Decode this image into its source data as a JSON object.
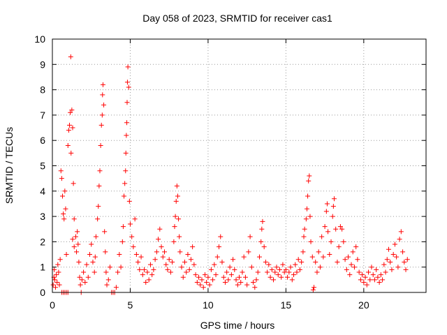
{
  "chart_data": {
    "type": "scatter",
    "title": "Day 058 of 2023, SRMTID for receiver cas1",
    "xlabel": "GPS time / hours",
    "ylabel": "SRMTID / TECUs",
    "xlim": [
      0,
      24
    ],
    "ylim": [
      0,
      10
    ],
    "xticks": [
      0,
      5,
      10,
      15,
      20
    ],
    "xtick_labels": [
      "0",
      "5",
      "10",
      "15",
      "20"
    ],
    "yticks": [
      0,
      1,
      2,
      3,
      4,
      5,
      6,
      7,
      8,
      9,
      10
    ],
    "ytick_labels": [
      "0",
      "1",
      "2",
      "3",
      "4",
      "5",
      "6",
      "7",
      "8",
      "9",
      "10"
    ],
    "grid": true,
    "marker": "+",
    "series": [
      {
        "name": "SRMTID",
        "color": "#ff0000",
        "points": [
          [
            0.05,
            0.3
          ],
          [
            0.1,
            0.6
          ],
          [
            0.12,
            0.9
          ],
          [
            0.15,
            0.5
          ],
          [
            0.2,
            0.2
          ],
          [
            0.25,
            0.7
          ],
          [
            0.3,
            0.4
          ],
          [
            0.35,
            1.1
          ],
          [
            0.4,
            0.8
          ],
          [
            0.45,
            0.3
          ],
          [
            0.5,
            1.3
          ],
          [
            0.55,
            4.8
          ],
          [
            0.6,
            4.5
          ],
          [
            0.65,
            3.8
          ],
          [
            0.7,
            3.1
          ],
          [
            0.75,
            2.9
          ],
          [
            0.8,
            4.0
          ],
          [
            0.85,
            3.3
          ],
          [
            0.6,
            0.0
          ],
          [
            0.7,
            0.0
          ],
          [
            0.8,
            0.0
          ],
          [
            0.9,
            0.0
          ],
          [
            1.0,
            0.0
          ],
          [
            0.9,
            1.5
          ],
          [
            1.0,
            5.8
          ],
          [
            1.05,
            6.4
          ],
          [
            1.1,
            6.6
          ],
          [
            1.15,
            7.1
          ],
          [
            1.18,
            9.3
          ],
          [
            1.2,
            5.5
          ],
          [
            1.25,
            7.2
          ],
          [
            1.3,
            6.5
          ],
          [
            1.35,
            4.3
          ],
          [
            1.4,
            2.9
          ],
          [
            1.3,
            2.1
          ],
          [
            1.4,
            1.8
          ],
          [
            1.5,
            2.2
          ],
          [
            1.55,
            1.6
          ],
          [
            1.6,
            2.4
          ],
          [
            1.65,
            1.9
          ],
          [
            1.7,
            1.2
          ],
          [
            1.75,
            0.6
          ],
          [
            1.8,
            0.3
          ],
          [
            1.85,
            0.0
          ],
          [
            1.9,
            0.5
          ],
          [
            2.0,
            0.8
          ],
          [
            2.1,
            0.4
          ],
          [
            2.2,
            1.1
          ],
          [
            2.3,
            0.6
          ],
          [
            2.4,
            1.5
          ],
          [
            2.5,
            1.9
          ],
          [
            2.6,
            1.2
          ],
          [
            2.7,
            0.8
          ],
          [
            2.75,
            1.4
          ],
          [
            2.8,
            2.2
          ],
          [
            2.9,
            2.9
          ],
          [
            2.95,
            3.4
          ],
          [
            3.0,
            4.2
          ],
          [
            3.05,
            4.8
          ],
          [
            3.1,
            5.8
          ],
          [
            3.15,
            6.6
          ],
          [
            3.2,
            7.0
          ],
          [
            3.22,
            7.8
          ],
          [
            3.25,
            8.2
          ],
          [
            3.3,
            7.4
          ],
          [
            3.35,
            2.4
          ],
          [
            3.4,
            1.6
          ],
          [
            3.45,
            0.8
          ],
          [
            3.5,
            0.3
          ],
          [
            3.6,
            0.5
          ],
          [
            3.7,
            1.0
          ],
          [
            3.8,
            0.0
          ],
          [
            3.9,
            0.0
          ],
          [
            4.0,
            0.0
          ],
          [
            4.1,
            0.2
          ],
          [
            4.2,
            0.8
          ],
          [
            4.3,
            1.5
          ],
          [
            4.4,
            1.0
          ],
          [
            4.5,
            2.0
          ],
          [
            4.55,
            2.6
          ],
          [
            4.6,
            3.8
          ],
          [
            4.65,
            4.3
          ],
          [
            4.7,
            4.8
          ],
          [
            4.72,
            5.5
          ],
          [
            4.75,
            6.2
          ],
          [
            4.78,
            6.7
          ],
          [
            4.8,
            7.5
          ],
          [
            4.82,
            8.3
          ],
          [
            4.85,
            8.9
          ],
          [
            4.9,
            8.1
          ],
          [
            4.95,
            3.6
          ],
          [
            5.0,
            2.7
          ],
          [
            5.1,
            2.2
          ],
          [
            5.2,
            1.8
          ],
          [
            5.3,
            2.9
          ],
          [
            5.4,
            1.5
          ],
          [
            5.5,
            1.2
          ],
          [
            5.6,
            0.9
          ],
          [
            5.7,
            1.4
          ],
          [
            5.8,
            0.7
          ],
          [
            5.9,
            0.9
          ],
          [
            6.0,
            0.4
          ],
          [
            6.1,
            0.8
          ],
          [
            6.2,
            0.5
          ],
          [
            6.3,
            1.1
          ],
          [
            6.4,
            0.7
          ],
          [
            6.5,
            0.9
          ],
          [
            6.6,
            1.3
          ],
          [
            6.7,
            1.6
          ],
          [
            6.8,
            2.1
          ],
          [
            6.9,
            2.5
          ],
          [
            7.0,
            1.8
          ],
          [
            7.1,
            1.4
          ],
          [
            7.2,
            1.6
          ],
          [
            7.3,
            1.1
          ],
          [
            7.4,
            0.9
          ],
          [
            7.5,
            1.3
          ],
          [
            7.6,
            0.8
          ],
          [
            7.7,
            1.2
          ],
          [
            7.8,
            2.0
          ],
          [
            7.85,
            2.6
          ],
          [
            7.9,
            3.0
          ],
          [
            7.95,
            3.6
          ],
          [
            8.0,
            4.2
          ],
          [
            8.05,
            3.8
          ],
          [
            8.1,
            2.9
          ],
          [
            8.15,
            2.2
          ],
          [
            8.2,
            1.6
          ],
          [
            8.3,
            1.0
          ],
          [
            8.4,
            0.6
          ],
          [
            8.5,
            1.2
          ],
          [
            8.6,
            0.8
          ],
          [
            8.7,
            1.5
          ],
          [
            8.8,
            0.9
          ],
          [
            8.9,
            1.3
          ],
          [
            9.0,
            1.8
          ],
          [
            9.1,
            1.1
          ],
          [
            9.2,
            0.7
          ],
          [
            9.3,
            0.4
          ],
          [
            9.4,
            0.6
          ],
          [
            9.5,
            0.3
          ],
          [
            9.6,
            0.5
          ],
          [
            9.7,
            0.2
          ],
          [
            9.8,
            0.7
          ],
          [
            9.9,
            0.4
          ],
          [
            10.0,
            0.6
          ],
          [
            10.1,
            0.3
          ],
          [
            10.2,
            0.9
          ],
          [
            10.3,
            0.5
          ],
          [
            10.4,
            1.1
          ],
          [
            10.5,
            0.7
          ],
          [
            10.6,
            1.4
          ],
          [
            10.7,
            1.8
          ],
          [
            10.8,
            2.2
          ],
          [
            10.9,
            1.2
          ],
          [
            11.0,
            0.6
          ],
          [
            11.1,
            0.4
          ],
          [
            11.2,
            0.8
          ],
          [
            11.3,
            0.5
          ],
          [
            11.4,
            1.0
          ],
          [
            11.5,
            0.7
          ],
          [
            11.6,
            1.3
          ],
          [
            11.7,
            0.9
          ],
          [
            11.8,
            0.5
          ],
          [
            11.9,
            0.3
          ],
          [
            12.0,
            0.6
          ],
          [
            12.1,
            0.4
          ],
          [
            12.2,
            0.8
          ],
          [
            12.3,
            1.4
          ],
          [
            12.4,
            0.6
          ],
          [
            12.5,
            0.3
          ],
          [
            12.6,
            1.6
          ],
          [
            12.7,
            2.2
          ],
          [
            12.8,
            1.0
          ],
          [
            12.9,
            0.4
          ],
          [
            13.0,
            0.2
          ],
          [
            13.1,
            0.5
          ],
          [
            13.2,
            0.8
          ],
          [
            13.3,
            1.4
          ],
          [
            13.4,
            2.0
          ],
          [
            13.45,
            2.5
          ],
          [
            13.5,
            2.8
          ],
          [
            13.6,
            1.8
          ],
          [
            13.7,
            1.2
          ],
          [
            13.8,
            0.8
          ],
          [
            13.9,
            1.1
          ],
          [
            14.0,
            0.6
          ],
          [
            14.1,
            0.9
          ],
          [
            14.2,
            0.5
          ],
          [
            14.3,
            0.8
          ],
          [
            14.4,
            1.0
          ],
          [
            14.5,
            0.7
          ],
          [
            14.6,
            0.9
          ],
          [
            14.7,
            0.6
          ],
          [
            14.8,
            1.1
          ],
          [
            14.9,
            0.8
          ],
          [
            15.0,
            0.9
          ],
          [
            15.1,
            0.6
          ],
          [
            15.2,
            0.8
          ],
          [
            15.3,
            1.0
          ],
          [
            15.4,
            0.5
          ],
          [
            15.5,
            0.7
          ],
          [
            15.6,
            1.1
          ],
          [
            15.7,
            0.8
          ],
          [
            15.8,
            1.3
          ],
          [
            15.9,
            0.9
          ],
          [
            16.0,
            1.2
          ],
          [
            16.1,
            1.6
          ],
          [
            16.15,
            2.2
          ],
          [
            16.2,
            2.5
          ],
          [
            16.3,
            2.9
          ],
          [
            16.35,
            3.3
          ],
          [
            16.4,
            3.8
          ],
          [
            16.45,
            4.4
          ],
          [
            16.5,
            4.6
          ],
          [
            16.55,
            3.0
          ],
          [
            16.6,
            2.0
          ],
          [
            16.7,
            1.4
          ],
          [
            16.75,
            0.1
          ],
          [
            16.8,
            0.2
          ],
          [
            16.9,
            1.2
          ],
          [
            17.0,
            0.8
          ],
          [
            17.1,
            1.6
          ],
          [
            17.2,
            1.0
          ],
          [
            17.3,
            2.2
          ],
          [
            17.4,
            1.4
          ],
          [
            17.5,
            2.6
          ],
          [
            17.6,
            3.2
          ],
          [
            17.65,
            3.5
          ],
          [
            17.7,
            2.4
          ],
          [
            17.8,
            1.5
          ],
          [
            17.9,
            2.0
          ],
          [
            18.0,
            3.0
          ],
          [
            18.05,
            3.4
          ],
          [
            18.1,
            3.7
          ],
          [
            18.2,
            2.5
          ],
          [
            18.3,
            1.2
          ],
          [
            18.4,
            1.8
          ],
          [
            18.5,
            2.6
          ],
          [
            18.6,
            2.5
          ],
          [
            18.7,
            2.0
          ],
          [
            18.8,
            1.3
          ],
          [
            18.9,
            0.9
          ],
          [
            19.0,
            1.4
          ],
          [
            19.1,
            0.7
          ],
          [
            19.2,
            1.1
          ],
          [
            19.3,
            1.6
          ],
          [
            19.4,
            1.0
          ],
          [
            19.5,
            1.8
          ],
          [
            19.6,
            1.3
          ],
          [
            19.7,
            0.8
          ],
          [
            19.8,
            0.5
          ],
          [
            19.9,
            0.7
          ],
          [
            20.0,
            0.4
          ],
          [
            20.1,
            0.6
          ],
          [
            20.2,
            0.3
          ],
          [
            20.3,
            0.8
          ],
          [
            20.4,
            0.5
          ],
          [
            20.5,
            1.0
          ],
          [
            20.6,
            0.7
          ],
          [
            20.7,
            0.5
          ],
          [
            20.8,
            0.9
          ],
          [
            20.9,
            0.6
          ],
          [
            21.0,
            0.4
          ],
          [
            21.1,
            0.7
          ],
          [
            21.2,
            0.5
          ],
          [
            21.3,
            1.1
          ],
          [
            21.4,
            0.8
          ],
          [
            21.5,
            1.3
          ],
          [
            21.6,
            1.7
          ],
          [
            21.7,
            1.2
          ],
          [
            21.8,
            0.9
          ],
          [
            21.9,
            1.5
          ],
          [
            22.0,
            1.9
          ],
          [
            22.1,
            1.4
          ],
          [
            22.2,
            1.0
          ],
          [
            22.3,
            2.1
          ],
          [
            22.4,
            2.4
          ],
          [
            22.5,
            1.6
          ],
          [
            22.6,
            1.2
          ],
          [
            22.7,
            0.9
          ],
          [
            22.8,
            1.3
          ]
        ]
      }
    ]
  }
}
